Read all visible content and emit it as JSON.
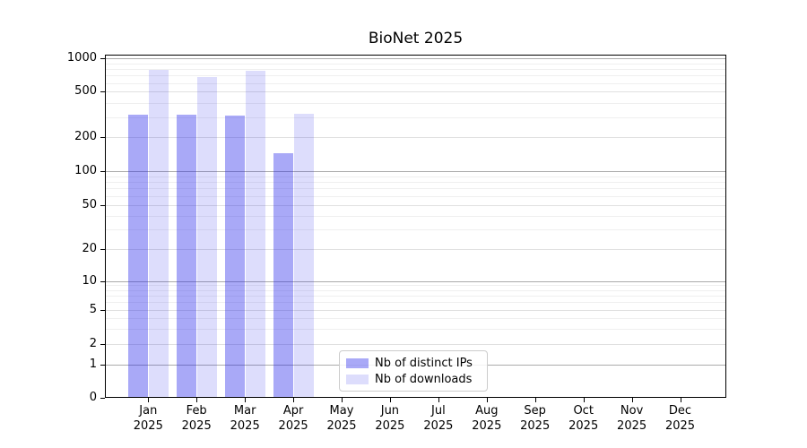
{
  "chart_data": {
    "type": "bar",
    "title": "BioNet 2025",
    "yscale": "symlog",
    "ylim": [
      0,
      1000
    ],
    "grid": "on",
    "legend_position": "lower center, inside plot",
    "gridline_colors": {
      "major_power_of_ten": "#ababab",
      "labeled_tick": "#e0e0e0",
      "minor": "#efefef"
    },
    "y_ticks": [
      0,
      1,
      2,
      5,
      10,
      20,
      50,
      100,
      200,
      500,
      1000
    ],
    "categories": [
      "Jan 2025",
      "Feb 2025",
      "Mar 2025",
      "Apr 2025",
      "May 2025",
      "Jun 2025",
      "Jul 2025",
      "Aug 2025",
      "Sep 2025",
      "Oct 2025",
      "Nov 2025",
      "Dec 2025"
    ],
    "series": [
      {
        "name": "Nb of distinct IPs",
        "color": "rgba(30,30,235,0.38)",
        "color_hex_on_white": "#a9a9f7",
        "values": [
          316,
          314,
          306,
          143,
          0,
          0,
          0,
          0,
          0,
          0,
          0,
          0
        ]
      },
      {
        "name": "Nb of downloads",
        "color": "rgba(30,30,235,0.15)",
        "color_hex_on_white": "#ddddfb",
        "values": [
          795,
          675,
          770,
          320,
          0,
          0,
          0,
          0,
          0,
          0,
          0,
          0
        ]
      }
    ]
  }
}
